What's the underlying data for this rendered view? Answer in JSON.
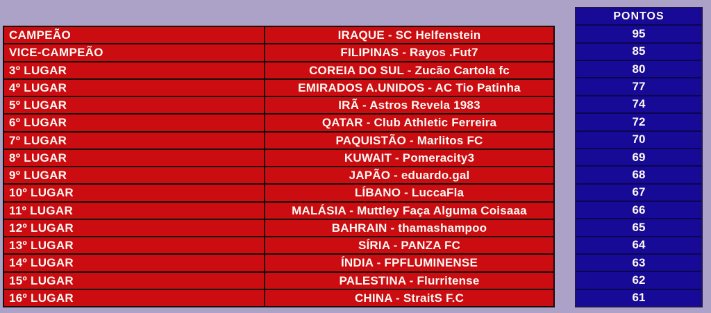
{
  "palette": {
    "background": "#ACA1C7",
    "red_cell": "#CB0C10",
    "red_border": "#1A0A0A",
    "navy_cell": "#170A97",
    "navy_border": "#0C0550",
    "text": "#FDF8F4"
  },
  "chart_data": {
    "type": "table",
    "points_header": "PONTOS",
    "columns": [
      "",
      "",
      "PONTOS"
    ],
    "rows": [
      {
        "rank": "CAMPEÃO",
        "team": "IRAQUE - SC Helfenstein",
        "points": 95
      },
      {
        "rank": "VICE-CAMPEÃO",
        "team": "FILIPINAS - Rayos .Fut7",
        "points": 85
      },
      {
        "rank": "3º LUGAR",
        "team": "COREIA DO SUL - Zucão Cartola fc",
        "points": 80
      },
      {
        "rank": "4º LUGAR",
        "team": "EMIRADOS A.UNIDOS - AC Tio Patinha",
        "points": 77
      },
      {
        "rank": "5º LUGAR",
        "team": "IRÃ - Astros Revela 1983",
        "points": 74
      },
      {
        "rank": "6º LUGAR",
        "team": "QATAR - Club Athletic Ferreira",
        "points": 72
      },
      {
        "rank": "7º LUGAR",
        "team": "PAQUISTÃO - Marlitos FC",
        "points": 70
      },
      {
        "rank": "8º LUGAR",
        "team": "KUWAIT - Pomeracity3",
        "points": 69
      },
      {
        "rank": "9º LUGAR",
        "team": "JAPÃO - eduardo.gal",
        "points": 68
      },
      {
        "rank": "10º LUGAR",
        "team": "LÍBANO - LuccaFla",
        "points": 67
      },
      {
        "rank": "11º LUGAR",
        "team": "MALÁSIA - Muttley Faça Alguma Coisaaa",
        "points": 66
      },
      {
        "rank": "12º LUGAR",
        "team": "BAHRAIN - thamashampoo",
        "points": 65
      },
      {
        "rank": "13º LUGAR",
        "team": "SÍRIA - PANZA FC",
        "points": 64
      },
      {
        "rank": "14º LUGAR",
        "team": "ÍNDIA - FPFLUMINENSE",
        "points": 63
      },
      {
        "rank": "15º LUGAR",
        "team": "PALESTINA - Flurritense",
        "points": 62
      },
      {
        "rank": "16º LUGAR",
        "team": "CHINA - StraitS F.C",
        "points": 61
      }
    ]
  }
}
